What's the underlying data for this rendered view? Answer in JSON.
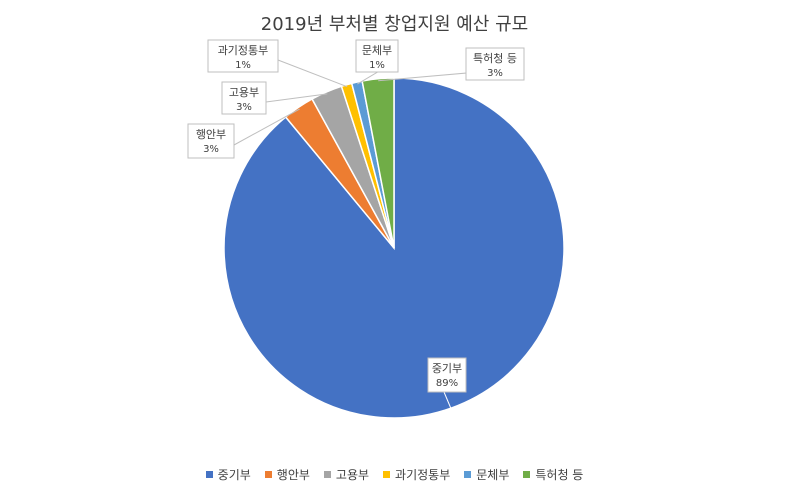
{
  "chart_data": {
    "type": "pie",
    "title": "2019년 부처별 창업지원 예산 규모",
    "categories": [
      "중기부",
      "행안부",
      "고용부",
      "과기정통부",
      "문체부",
      "특허청 등"
    ],
    "values": [
      89,
      3,
      3,
      1,
      1,
      3
    ],
    "data_labels": [
      "89%",
      "3%",
      "3%",
      "1%",
      "1%",
      "3%"
    ],
    "colors": [
      "#4472C4",
      "#ED7D31",
      "#A5A5A5",
      "#FFC000",
      "#5B9BD5",
      "#70AD47"
    ],
    "legend_position": "bottom",
    "start_angle_deg": 0,
    "direction": "clockwise"
  }
}
